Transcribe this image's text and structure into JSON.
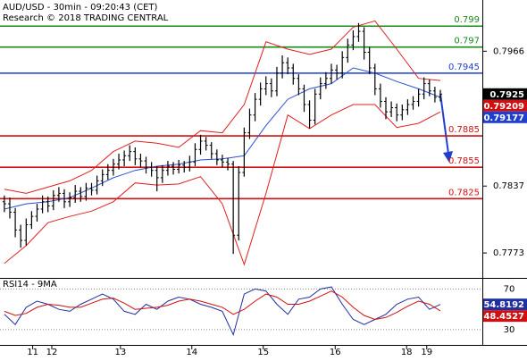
{
  "chart_data": [
    {
      "type": "ohlc",
      "title": "AUD/USD - 30min - 09:20:43 (CET)",
      "subtitle": "Research © 2018 TRADING CENTRAL",
      "xlim": [
        -0.8,
        87.7
      ],
      "ylim": [
        0.775,
        0.8015
      ],
      "yticks": [
        0.7966,
        0.7837,
        0.7773
      ],
      "xticks": [
        {
          "value": 5.2,
          "label": "11"
        },
        {
          "value": 8.7,
          "label": "12"
        },
        {
          "value": 21.3,
          "label": "13"
        },
        {
          "value": 34.4,
          "label": "14"
        },
        {
          "value": 47.5,
          "label": "15"
        },
        {
          "value": 60.7,
          "label": "16"
        },
        {
          "value": 73.8,
          "label": "18"
        },
        {
          "value": 77.5,
          "label": "19"
        }
      ],
      "color": "#000000",
      "open": [
        0.7822,
        0.782,
        0.7812,
        0.7795,
        0.7785,
        0.78,
        0.7808,
        0.7815,
        0.7822,
        0.7818,
        0.7828,
        0.783,
        0.7822,
        0.7826,
        0.7832,
        0.7827,
        0.7835,
        0.7833,
        0.7842,
        0.7848,
        0.7852,
        0.7858,
        0.7862,
        0.7866,
        0.787,
        0.7863,
        0.7861,
        0.7855,
        0.7852,
        0.7845,
        0.7852,
        0.7856,
        0.7853,
        0.7857,
        0.7855,
        0.786,
        0.7872,
        0.788,
        0.7876,
        0.7868,
        0.7862,
        0.786,
        0.7858,
        0.779,
        0.785,
        0.7888,
        0.7905,
        0.792,
        0.793,
        0.7935,
        0.7928,
        0.7945,
        0.7955,
        0.795,
        0.794,
        0.793,
        0.7915,
        0.79,
        0.7925,
        0.7935,
        0.794,
        0.7948,
        0.7945,
        0.796,
        0.7972,
        0.798,
        0.7985,
        0.7965,
        0.795,
        0.793,
        0.7918,
        0.7908,
        0.7912,
        0.7905,
        0.791,
        0.7915,
        0.7918,
        0.7925,
        0.7935,
        0.7928,
        0.7922
      ],
      "high": [
        0.7828,
        0.7826,
        0.7816,
        0.78,
        0.7806,
        0.7813,
        0.782,
        0.7828,
        0.7827,
        0.7833,
        0.7836,
        0.7834,
        0.7831,
        0.7838,
        0.7836,
        0.784,
        0.784,
        0.7847,
        0.7853,
        0.7858,
        0.7863,
        0.7868,
        0.7871,
        0.7876,
        0.7874,
        0.7868,
        0.7865,
        0.786,
        0.7856,
        0.7857,
        0.7861,
        0.786,
        0.7862,
        0.7861,
        0.7866,
        0.7878,
        0.7886,
        0.7884,
        0.7879,
        0.7872,
        0.7867,
        0.7864,
        0.7861,
        0.7856,
        0.7893,
        0.7911,
        0.7926,
        0.7936,
        0.7942,
        0.794,
        0.7951,
        0.7962,
        0.796,
        0.7954,
        0.7944,
        0.7934,
        0.7919,
        0.793,
        0.7941,
        0.7946,
        0.7954,
        0.7953,
        0.7966,
        0.7978,
        0.7986,
        0.7993,
        0.7989,
        0.797,
        0.7954,
        0.7935,
        0.7922,
        0.7918,
        0.7916,
        0.7915,
        0.792,
        0.7923,
        0.793,
        0.7941,
        0.7939,
        0.7932,
        0.7929
      ],
      "low": [
        0.7812,
        0.7806,
        0.7788,
        0.7778,
        0.778,
        0.7796,
        0.7803,
        0.7811,
        0.7812,
        0.7814,
        0.7822,
        0.7816,
        0.7817,
        0.7821,
        0.7822,
        0.7823,
        0.7828,
        0.7829,
        0.7837,
        0.7843,
        0.7847,
        0.7853,
        0.7856,
        0.7861,
        0.7857,
        0.7855,
        0.7849,
        0.7846,
        0.7832,
        0.784,
        0.7847,
        0.7848,
        0.7849,
        0.785,
        0.7851,
        0.7856,
        0.7867,
        0.7871,
        0.7863,
        0.7857,
        0.7855,
        0.7852,
        0.7772,
        0.7785,
        0.7846,
        0.7882,
        0.7899,
        0.7914,
        0.7924,
        0.7922,
        0.7923,
        0.794,
        0.7944,
        0.7934,
        0.7924,
        0.7908,
        0.7892,
        0.7896,
        0.792,
        0.793,
        0.7935,
        0.7939,
        0.794,
        0.7955,
        0.7967,
        0.7975,
        0.7958,
        0.7944,
        0.7924,
        0.7912,
        0.7901,
        0.7903,
        0.7899,
        0.79,
        0.7905,
        0.791,
        0.7913,
        0.792,
        0.7923,
        0.7917,
        0.7918
      ],
      "close": [
        0.782,
        0.7812,
        0.7795,
        0.7785,
        0.78,
        0.7808,
        0.7815,
        0.7822,
        0.7818,
        0.7828,
        0.783,
        0.7822,
        0.7826,
        0.7832,
        0.7827,
        0.7835,
        0.7833,
        0.7842,
        0.7848,
        0.7852,
        0.7858,
        0.7862,
        0.7866,
        0.787,
        0.7863,
        0.7861,
        0.7855,
        0.7852,
        0.7845,
        0.7852,
        0.7856,
        0.7853,
        0.7857,
        0.7855,
        0.786,
        0.7872,
        0.788,
        0.7876,
        0.7868,
        0.7862,
        0.786,
        0.7858,
        0.779,
        0.785,
        0.7888,
        0.7905,
        0.792,
        0.793,
        0.7935,
        0.7928,
        0.7945,
        0.7955,
        0.795,
        0.794,
        0.793,
        0.7915,
        0.79,
        0.7925,
        0.7935,
        0.794,
        0.7948,
        0.7945,
        0.796,
        0.7972,
        0.798,
        0.7985,
        0.7965,
        0.795,
        0.793,
        0.7918,
        0.7908,
        0.7912,
        0.7905,
        0.791,
        0.7915,
        0.7918,
        0.7925,
        0.7935,
        0.7928,
        0.7922,
        0.7925
      ],
      "bands_x": [
        0,
        4,
        8,
        12,
        16,
        20,
        24,
        28,
        32,
        36,
        40,
        44,
        48,
        52,
        56,
        60,
        64,
        68,
        72,
        76,
        80
      ],
      "bands": [
        {
          "color": "#e02020",
          "values": [
            0.7834,
            0.783,
            0.7836,
            0.7842,
            0.7852,
            0.787,
            0.788,
            0.7878,
            0.7874,
            0.789,
            0.7888,
            0.7915,
            0.7975,
            0.7968,
            0.7963,
            0.7968,
            0.7989,
            0.7995,
            0.7968,
            0.794,
            0.7938
          ]
        },
        {
          "color": "#2a50d0",
          "values": [
            0.7815,
            0.782,
            0.7822,
            0.7826,
            0.7835,
            0.7845,
            0.7852,
            0.7856,
            0.7858,
            0.7862,
            0.7863,
            0.7866,
            0.7895,
            0.792,
            0.793,
            0.7935,
            0.795,
            0.7945,
            0.7937,
            0.793,
            0.7922
          ]
        },
        {
          "color": "#e02020",
          "values": [
            0.7763,
            0.778,
            0.7802,
            0.7808,
            0.7813,
            0.7822,
            0.784,
            0.7838,
            0.7839,
            0.7846,
            0.782,
            0.7762,
            0.783,
            0.7905,
            0.7892,
            0.7905,
            0.7915,
            0.7915,
            0.7893,
            0.7897,
            0.7908
          ]
        }
      ],
      "levels": [
        {
          "value": 0.799,
          "color": "#1a8a1a"
        },
        {
          "value": 0.797,
          "color": "#1a8a1a"
        },
        {
          "value": 0.7945,
          "color": "#1f3fcf"
        },
        {
          "value": 0.7885,
          "color": "#d01010"
        },
        {
          "value": 0.7855,
          "color": "#d01010"
        },
        {
          "value": 0.7825,
          "color": "#d01010"
        }
      ],
      "tags": [
        {
          "value": 0.7925,
          "color": "#000000"
        },
        {
          "value": 0.79209,
          "color": "#d01010"
        },
        {
          "value": 0.79177,
          "color": "#1f3fcf"
        }
      ]
    },
    {
      "type": "rsi",
      "title": "RSI14 - 9MA",
      "ylim": [
        15,
        80
      ],
      "yticks": [
        70,
        30
      ],
      "x": [
        0,
        2,
        4,
        6,
        8,
        10,
        12,
        14,
        16,
        18,
        20,
        22,
        24,
        26,
        28,
        30,
        32,
        34,
        36,
        38,
        40,
        42,
        44,
        46,
        48,
        50,
        52,
        54,
        56,
        58,
        60,
        62,
        64,
        66,
        68,
        70,
        72,
        74,
        76,
        78,
        80
      ],
      "series": [
        {
          "color": "#1f2fa0",
          "values": [
            45,
            35,
            52,
            58,
            55,
            50,
            48,
            55,
            60,
            65,
            60,
            48,
            45,
            55,
            50,
            58,
            62,
            60,
            55,
            52,
            48,
            25,
            65,
            70,
            68,
            55,
            45,
            60,
            62,
            70,
            72,
            55,
            40,
            35,
            40,
            45,
            55,
            60,
            62,
            50,
            54.8192
          ]
        },
        {
          "color": "#d01010",
          "values": [
            48,
            44,
            46,
            52,
            55,
            54,
            52,
            52,
            56,
            60,
            61,
            56,
            50,
            51,
            52,
            54,
            58,
            60,
            58,
            55,
            52,
            45,
            50,
            58,
            65,
            62,
            55,
            55,
            58,
            63,
            68,
            62,
            52,
            44,
            40,
            42,
            47,
            53,
            58,
            55,
            48.4527
          ]
        }
      ]
    }
  ]
}
